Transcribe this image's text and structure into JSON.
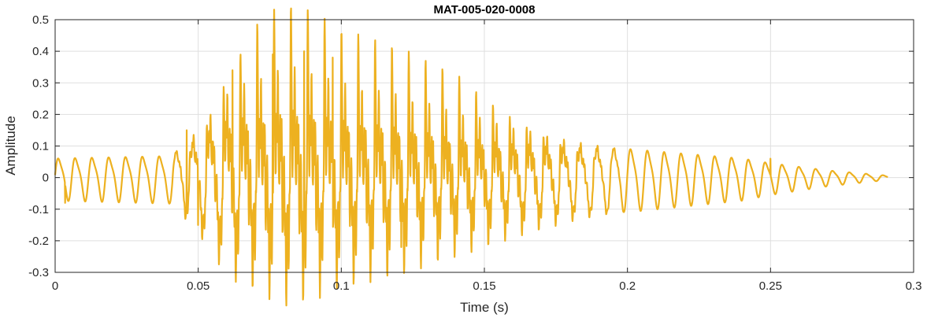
{
  "chart_data": {
    "type": "line",
    "title": "MAT-005-020-0008",
    "xlabel": "Time (s)",
    "ylabel": "Amplitude",
    "xlim": [
      0,
      0.3
    ],
    "ylim": [
      -0.3,
      0.5
    ],
    "x_ticks": [
      0,
      0.05,
      0.1,
      0.15,
      0.2,
      0.25,
      0.3
    ],
    "x_tick_labels": [
      "0",
      "0.05",
      "0.1",
      "0.15",
      "0.2",
      "0.25",
      "0.3"
    ],
    "y_ticks": [
      -0.3,
      -0.2,
      -0.1,
      0,
      0.1,
      0.2,
      0.3,
      0.4,
      0.5
    ],
    "y_tick_labels": [
      "-0.3",
      "-0.2",
      "-0.1",
      "0",
      "0.1",
      "0.2",
      "0.3",
      "0.4",
      "0.5"
    ],
    "grid": true,
    "series": [
      {
        "color": "#EDB120",
        "signal": {
          "duration": 0.291,
          "fundamental_hz": 170,
          "envelope": [
            [
              0.0,
              0.08
            ],
            [
              0.04,
              0.09
            ],
            [
              0.05,
              0.18
            ],
            [
              0.06,
              0.3
            ],
            [
              0.07,
              0.35
            ],
            [
              0.08,
              0.4
            ],
            [
              0.09,
              0.38
            ],
            [
              0.1,
              0.34
            ],
            [
              0.12,
              0.3
            ],
            [
              0.14,
              0.24
            ],
            [
              0.16,
              0.18
            ],
            [
              0.18,
              0.14
            ],
            [
              0.2,
              0.12
            ],
            [
              0.22,
              0.1
            ],
            [
              0.24,
              0.08
            ],
            [
              0.25,
              0.06
            ],
            [
              0.27,
              0.03
            ],
            [
              0.291,
              0.008
            ]
          ],
          "peaks": [
            {
              "x": 0.0035,
              "y": -0.08
            },
            {
              "x": 0.046,
              "y": 0.15
            },
            {
              "x": 0.05,
              "y": -0.15
            },
            {
              "x": 0.062,
              "y": 0.34
            },
            {
              "x": 0.076,
              "y": 0.39
            },
            {
              "x": 0.081,
              "y": -0.21
            },
            {
              "x": 0.087,
              "y": 0.4
            },
            {
              "x": 0.097,
              "y": 0.38
            },
            {
              "x": 0.11,
              "y": -0.19
            },
            {
              "x": 0.121,
              "y": -0.22
            },
            {
              "x": 0.25,
              "y": 0.06
            }
          ]
        }
      }
    ]
  }
}
